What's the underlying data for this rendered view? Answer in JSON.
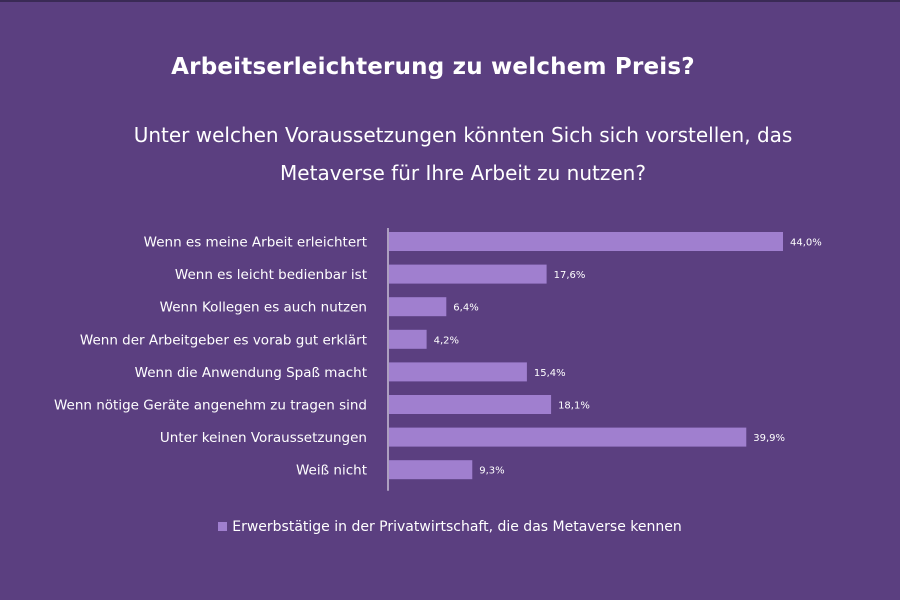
{
  "chart_data": {
    "type": "bar",
    "orientation": "horizontal",
    "title": "Arbeitserleichterung zu welchem Preis?",
    "subtitle_lines": [
      "Unter welchen Voraussetzungen könnten Sich sich vorstellen, das",
      "Metaverse für Ihre Arbeit zu nutzen?"
    ],
    "categories": [
      "Wenn es meine Arbeit erleichtert",
      "Wenn es leicht bedienbar ist",
      "Wenn Kollegen es auch nutzen",
      "Wenn der Arbeitgeber es vorab gut erklärt",
      "Wenn die Anwendung Spaß macht",
      "Wenn nötige Geräte angenehm zu tragen sind",
      "Unter keinen Voraussetzungen",
      "Weiß nicht"
    ],
    "series": [
      {
        "name": "Erwerbstätige in der Privatwirtschaft, die das Metaverse kennen",
        "values": [
          44.0,
          17.6,
          6.4,
          4.2,
          15.4,
          18.1,
          39.9,
          9.3
        ],
        "labels": [
          "44,0%",
          "17,6%",
          "6,4%",
          "4,2%",
          "15,4%",
          "18,1%",
          "39,9%",
          "9,3%"
        ]
      }
    ],
    "xlim": [
      0,
      44.0
    ],
    "grid": false,
    "legend_position": "bottom",
    "colors": {
      "background": "#5b3f80",
      "bar": "#a07fcf",
      "text": "#ffffff",
      "axis": "#ffffff"
    }
  }
}
